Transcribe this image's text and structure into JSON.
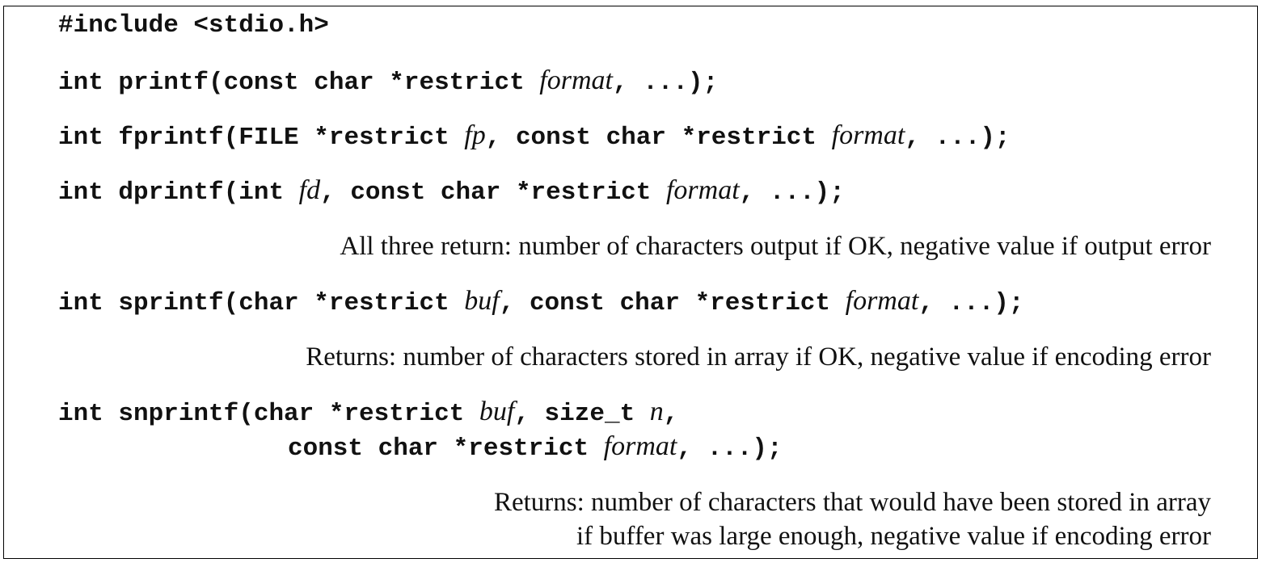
{
  "lines": {
    "include": "#include <stdio.h>",
    "printf": {
      "pre": "int printf(const char *restrict ",
      "arg1": "format",
      "post": ", ...);"
    },
    "fprintf": {
      "pre": "int fprintf(FILE *restrict ",
      "arg1": "fp",
      "mid": ", const char *restrict ",
      "arg2": "format",
      "post": ", ...);"
    },
    "dprintf": {
      "pre": "int dprintf(int ",
      "arg1": "fd",
      "mid": ", const char *restrict ",
      "arg2": "format",
      "post": ", ...);"
    },
    "sprintf": {
      "pre": "int sprintf(char *restrict ",
      "arg1": "buf",
      "mid": ", const char *restrict ",
      "arg2": "format",
      "post": ", ...);"
    },
    "snprintf": {
      "pre": "int snprintf(char *restrict ",
      "arg1": "buf",
      "mid": ", size_t ",
      "arg2": "n",
      "post1": ",",
      "cont_pre": "const char *restrict ",
      "arg3": "format",
      "post2": ", ...);"
    }
  },
  "returns": {
    "three": "All three return: number of characters output if OK, negative value if output error",
    "sprintf": "Returns: number of characters stored in array if OK, negative value if encoding error",
    "snprintf_line1": "Returns: number of characters that would have been stored in array",
    "snprintf_line2": "if buffer was large enough, negative value if encoding error"
  }
}
